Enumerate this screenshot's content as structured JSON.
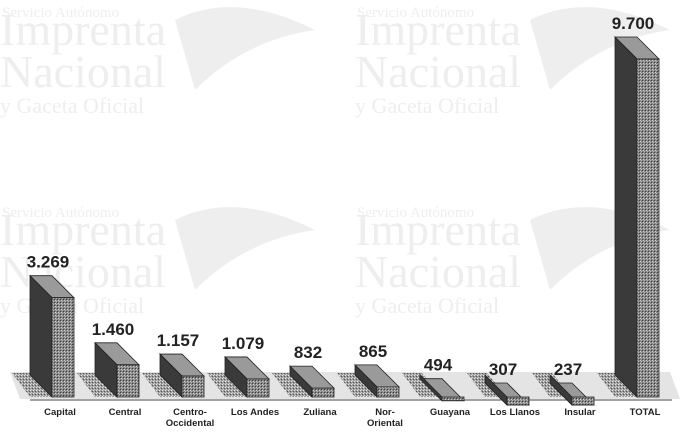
{
  "watermark": {
    "lines": [
      "Imprenta",
      "Nacional",
      "y Gaceta Oficial"
    ],
    "header": "Servicio Autónomo"
  },
  "chart_data": {
    "type": "bar",
    "categories": [
      "Capital",
      "Central",
      "Centro-\nOccidental",
      "Los Andes",
      "Zuliana",
      "Nor-\nOriental",
      "Guayana",
      "Los Llanos",
      "Insular",
      "TOTAL"
    ],
    "values": [
      3269,
      1460,
      1157,
      1079,
      832,
      865,
      494,
      307,
      237,
      9700
    ],
    "value_labels": [
      "3.269",
      "1.460",
      "1.157",
      "1.079",
      "832",
      "865",
      "494",
      "307",
      "237",
      "9.700"
    ],
    "title": "",
    "xlabel": "",
    "ylabel": "",
    "ylim": [
      0,
      9700
    ],
    "grid": false,
    "legend": "none",
    "colors": {
      "front": "#3a3a3a",
      "side": "#6b6b6b",
      "top": "#9a9a9a",
      "base": "#bdbdbd"
    }
  }
}
